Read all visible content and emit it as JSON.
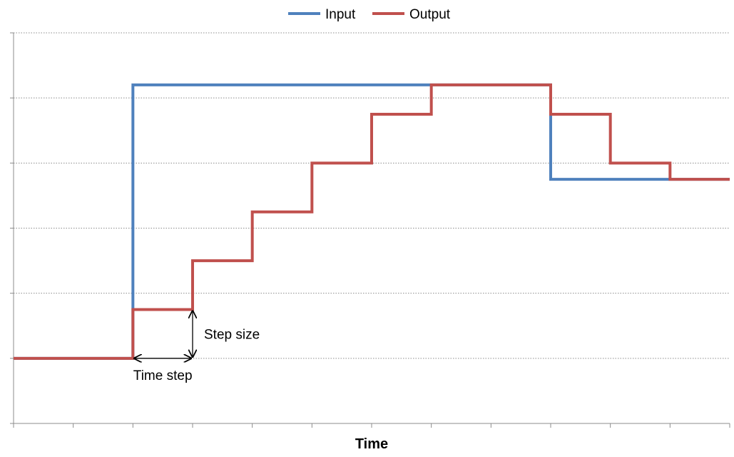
{
  "chart_data": {
    "type": "line",
    "step": true,
    "x": [
      0,
      1,
      2,
      3,
      4,
      5,
      6,
      7,
      8,
      9,
      10,
      11,
      12
    ],
    "xlim": [
      0,
      12
    ],
    "ylim": [
      0,
      6
    ],
    "xlabel": "Time",
    "ylabel": "",
    "grid": true,
    "legend_position": "top",
    "series": [
      {
        "name": "Input",
        "color": "#4F81BD",
        "values": [
          1,
          1,
          5.2,
          5.2,
          5.2,
          5.2,
          5.2,
          5.2,
          5.2,
          3.75,
          3.75,
          3.75,
          3.75
        ]
      },
      {
        "name": "Output",
        "color": "#C0504D",
        "values": [
          1,
          1,
          1.75,
          2.5,
          3.25,
          4,
          4.75,
          5.2,
          5.2,
          4.75,
          4,
          3.75,
          3.75
        ]
      }
    ],
    "annotations": [
      {
        "text": "Time step",
        "type": "horizontal-span",
        "x_from": 2,
        "x_to": 3,
        "y": 1
      },
      {
        "text": "Step size",
        "type": "vertical-span",
        "x": 3,
        "y_from": 1,
        "y_to": 1.75
      }
    ]
  }
}
